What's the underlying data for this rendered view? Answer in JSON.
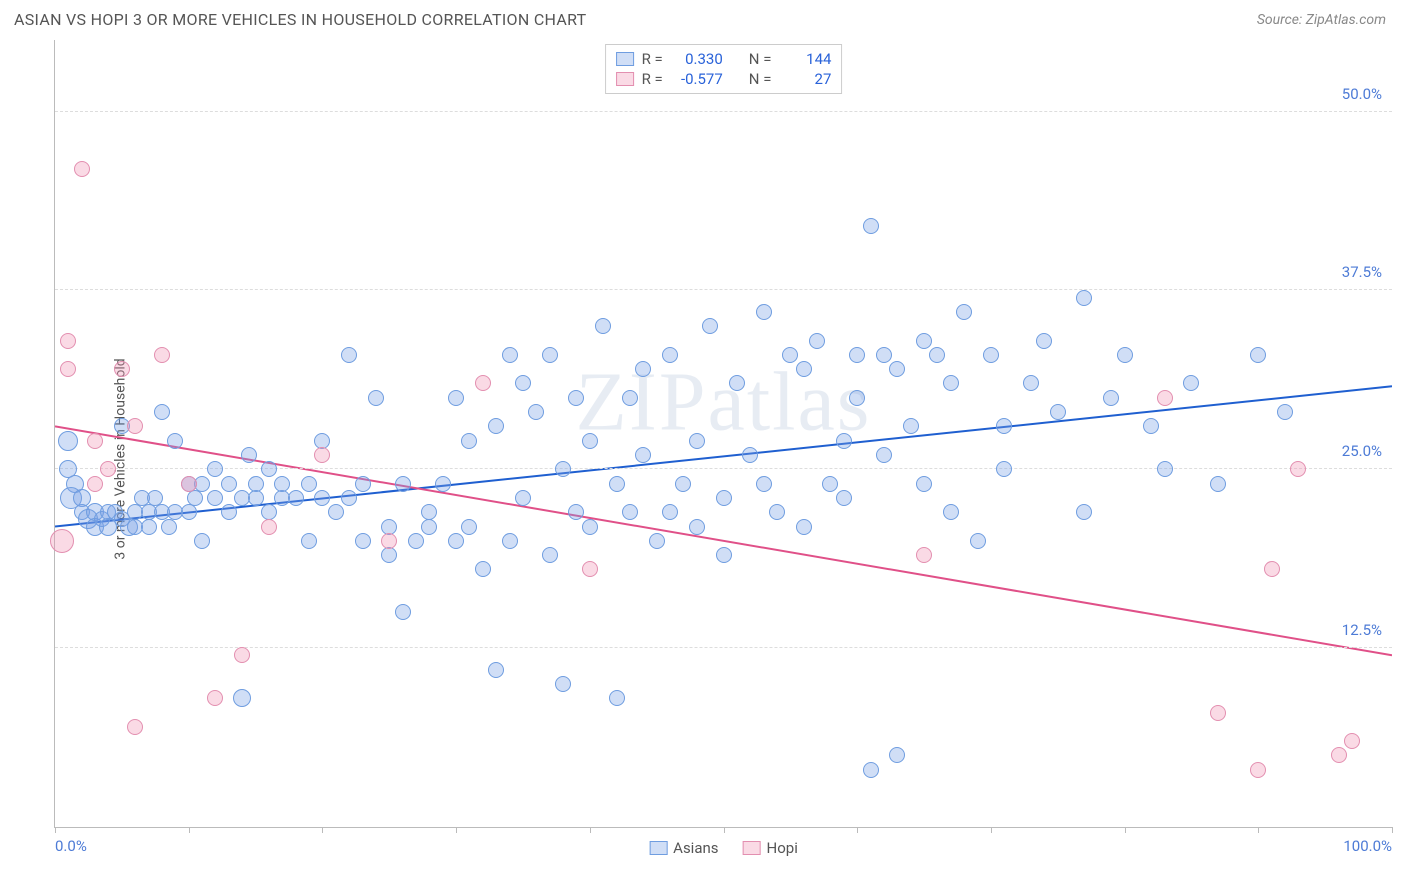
{
  "title": "ASIAN VS HOPI 3 OR MORE VEHICLES IN HOUSEHOLD CORRELATION CHART",
  "source_prefix": "Source: ",
  "source_name": "ZipAtlas.com",
  "y_axis_label": "3 or more Vehicles in Household",
  "watermark": "ZIPatlas",
  "chart": {
    "type": "scatter",
    "xlim": [
      0,
      100
    ],
    "ylim": [
      0,
      55
    ],
    "x_ticks": [
      0,
      10,
      20,
      30,
      40,
      50,
      60,
      70,
      80,
      90,
      100
    ],
    "x_tick_labels": {
      "0": "0.0%",
      "100": "100.0%"
    },
    "y_gridlines": [
      12.5,
      25.0,
      37.5,
      50.0
    ],
    "y_tick_labels": [
      "12.5%",
      "25.0%",
      "37.5%",
      "50.0%"
    ],
    "background_color": "#ffffff",
    "grid_color": "#dddddd",
    "axis_color": "#bbbbbb",
    "tick_label_color": "#4d7bd6",
    "series": [
      {
        "name": "Asians",
        "fill": "rgba(120,160,230,0.35)",
        "stroke": "#6f9de0",
        "trend_color": "#1f5fd0",
        "trend": {
          "x1": 0,
          "y1": 21.0,
          "x2": 100,
          "y2": 30.8
        },
        "R": "0.330",
        "N": "144",
        "points": [
          {
            "x": 1,
            "y": 27,
            "r": 10
          },
          {
            "x": 1,
            "y": 25,
            "r": 9
          },
          {
            "x": 1.5,
            "y": 24,
            "r": 9
          },
          {
            "x": 1.2,
            "y": 23,
            "r": 11
          },
          {
            "x": 2,
            "y": 23,
            "r": 9
          },
          {
            "x": 2,
            "y": 22,
            "r": 8
          },
          {
            "x": 2.5,
            "y": 21.5,
            "r": 10
          },
          {
            "x": 3,
            "y": 22,
            "r": 9
          },
          {
            "x": 3,
            "y": 21,
            "r": 9
          },
          {
            "x": 3.5,
            "y": 21.5,
            "r": 8
          },
          {
            "x": 4,
            "y": 21,
            "r": 9
          },
          {
            "x": 4,
            "y": 22,
            "r": 8
          },
          {
            "x": 4.5,
            "y": 22,
            "r": 8
          },
          {
            "x": 5,
            "y": 21.5,
            "r": 8
          },
          {
            "x": 5,
            "y": 28,
            "r": 8
          },
          {
            "x": 5.5,
            "y": 21,
            "r": 9
          },
          {
            "x": 6,
            "y": 22,
            "r": 8
          },
          {
            "x": 6,
            "y": 21,
            "r": 8
          },
          {
            "x": 6.5,
            "y": 23,
            "r": 8
          },
          {
            "x": 7,
            "y": 22,
            "r": 8
          },
          {
            "x": 7,
            "y": 21,
            "r": 8
          },
          {
            "x": 7.5,
            "y": 23,
            "r": 8
          },
          {
            "x": 8,
            "y": 22,
            "r": 8
          },
          {
            "x": 8,
            "y": 29,
            "r": 8
          },
          {
            "x": 8.5,
            "y": 21,
            "r": 8
          },
          {
            "x": 9,
            "y": 22,
            "r": 8
          },
          {
            "x": 9,
            "y": 27,
            "r": 8
          },
          {
            "x": 10,
            "y": 22,
            "r": 8
          },
          {
            "x": 10,
            "y": 24,
            "r": 8
          },
          {
            "x": 10.5,
            "y": 23,
            "r": 8
          },
          {
            "x": 11,
            "y": 20,
            "r": 8
          },
          {
            "x": 11,
            "y": 24,
            "r": 8
          },
          {
            "x": 12,
            "y": 23,
            "r": 8
          },
          {
            "x": 12,
            "y": 25,
            "r": 8
          },
          {
            "x": 13,
            "y": 24,
            "r": 8
          },
          {
            "x": 13,
            "y": 22,
            "r": 8
          },
          {
            "x": 14,
            "y": 9,
            "r": 9
          },
          {
            "x": 14,
            "y": 23,
            "r": 8
          },
          {
            "x": 14.5,
            "y": 26,
            "r": 8
          },
          {
            "x": 15,
            "y": 24,
            "r": 8
          },
          {
            "x": 15,
            "y": 23,
            "r": 8
          },
          {
            "x": 16,
            "y": 22,
            "r": 8
          },
          {
            "x": 16,
            "y": 25,
            "r": 8
          },
          {
            "x": 17,
            "y": 23,
            "r": 8
          },
          {
            "x": 17,
            "y": 24,
            "r": 8
          },
          {
            "x": 18,
            "y": 23,
            "r": 8
          },
          {
            "x": 19,
            "y": 20,
            "r": 8
          },
          {
            "x": 19,
            "y": 24,
            "r": 8
          },
          {
            "x": 20,
            "y": 23,
            "r": 8
          },
          {
            "x": 20,
            "y": 27,
            "r": 8
          },
          {
            "x": 21,
            "y": 22,
            "r": 8
          },
          {
            "x": 22,
            "y": 33,
            "r": 8
          },
          {
            "x": 22,
            "y": 23,
            "r": 8
          },
          {
            "x": 23,
            "y": 20,
            "r": 8
          },
          {
            "x": 23,
            "y": 24,
            "r": 8
          },
          {
            "x": 24,
            "y": 30,
            "r": 8
          },
          {
            "x": 25,
            "y": 21,
            "r": 8
          },
          {
            "x": 25,
            "y": 19,
            "r": 8
          },
          {
            "x": 26,
            "y": 15,
            "r": 8
          },
          {
            "x": 26,
            "y": 24,
            "r": 8
          },
          {
            "x": 27,
            "y": 20,
            "r": 8
          },
          {
            "x": 28,
            "y": 22,
            "r": 8
          },
          {
            "x": 28,
            "y": 21,
            "r": 8
          },
          {
            "x": 29,
            "y": 24,
            "r": 8
          },
          {
            "x": 30,
            "y": 30,
            "r": 8
          },
          {
            "x": 30,
            "y": 20,
            "r": 8
          },
          {
            "x": 31,
            "y": 27,
            "r": 8
          },
          {
            "x": 31,
            "y": 21,
            "r": 8
          },
          {
            "x": 32,
            "y": 18,
            "r": 8
          },
          {
            "x": 33,
            "y": 28,
            "r": 8
          },
          {
            "x": 33,
            "y": 11,
            "r": 8
          },
          {
            "x": 34,
            "y": 33,
            "r": 8
          },
          {
            "x": 34,
            "y": 20,
            "r": 8
          },
          {
            "x": 35,
            "y": 23,
            "r": 8
          },
          {
            "x": 35,
            "y": 31,
            "r": 8
          },
          {
            "x": 36,
            "y": 29,
            "r": 8
          },
          {
            "x": 37,
            "y": 19,
            "r": 8
          },
          {
            "x": 37,
            "y": 33,
            "r": 8
          },
          {
            "x": 38,
            "y": 25,
            "r": 8
          },
          {
            "x": 38,
            "y": 10,
            "r": 8
          },
          {
            "x": 39,
            "y": 30,
            "r": 8
          },
          {
            "x": 39,
            "y": 22,
            "r": 8
          },
          {
            "x": 40,
            "y": 27,
            "r": 8
          },
          {
            "x": 40,
            "y": 21,
            "r": 8
          },
          {
            "x": 41,
            "y": 35,
            "r": 8
          },
          {
            "x": 42,
            "y": 24,
            "r": 8
          },
          {
            "x": 42,
            "y": 9,
            "r": 8
          },
          {
            "x": 43,
            "y": 22,
            "r": 8
          },
          {
            "x": 43,
            "y": 30,
            "r": 8
          },
          {
            "x": 44,
            "y": 26,
            "r": 8
          },
          {
            "x": 44,
            "y": 32,
            "r": 8
          },
          {
            "x": 45,
            "y": 20,
            "r": 8
          },
          {
            "x": 46,
            "y": 33,
            "r": 8
          },
          {
            "x": 46,
            "y": 22,
            "r": 8
          },
          {
            "x": 47,
            "y": 24,
            "r": 8
          },
          {
            "x": 48,
            "y": 27,
            "r": 8
          },
          {
            "x": 48,
            "y": 21,
            "r": 8
          },
          {
            "x": 49,
            "y": 35,
            "r": 8
          },
          {
            "x": 50,
            "y": 23,
            "r": 8
          },
          {
            "x": 50,
            "y": 19,
            "r": 8
          },
          {
            "x": 51,
            "y": 31,
            "r": 8
          },
          {
            "x": 52,
            "y": 26,
            "r": 8
          },
          {
            "x": 53,
            "y": 24,
            "r": 8
          },
          {
            "x": 53,
            "y": 36,
            "r": 8
          },
          {
            "x": 54,
            "y": 22,
            "r": 8
          },
          {
            "x": 55,
            "y": 33,
            "r": 8
          },
          {
            "x": 56,
            "y": 32,
            "r": 8
          },
          {
            "x": 56,
            "y": 21,
            "r": 8
          },
          {
            "x": 57,
            "y": 34,
            "r": 8
          },
          {
            "x": 58,
            "y": 24,
            "r": 8
          },
          {
            "x": 59,
            "y": 27,
            "r": 8
          },
          {
            "x": 59,
            "y": 23,
            "r": 8
          },
          {
            "x": 60,
            "y": 33,
            "r": 8
          },
          {
            "x": 60,
            "y": 30,
            "r": 8
          },
          {
            "x": 61,
            "y": 42,
            "r": 8
          },
          {
            "x": 61,
            "y": 4,
            "r": 8
          },
          {
            "x": 62,
            "y": 33,
            "r": 8
          },
          {
            "x": 62,
            "y": 26,
            "r": 8
          },
          {
            "x": 63,
            "y": 5,
            "r": 8
          },
          {
            "x": 63,
            "y": 32,
            "r": 8
          },
          {
            "x": 64,
            "y": 28,
            "r": 8
          },
          {
            "x": 65,
            "y": 34,
            "r": 8
          },
          {
            "x": 65,
            "y": 24,
            "r": 8
          },
          {
            "x": 66,
            "y": 33,
            "r": 8
          },
          {
            "x": 67,
            "y": 22,
            "r": 8
          },
          {
            "x": 67,
            "y": 31,
            "r": 8
          },
          {
            "x": 68,
            "y": 36,
            "r": 8
          },
          {
            "x": 69,
            "y": 20,
            "r": 8
          },
          {
            "x": 70,
            "y": 33,
            "r": 8
          },
          {
            "x": 71,
            "y": 28,
            "r": 8
          },
          {
            "x": 71,
            "y": 25,
            "r": 8
          },
          {
            "x": 73,
            "y": 31,
            "r": 8
          },
          {
            "x": 74,
            "y": 34,
            "r": 8
          },
          {
            "x": 75,
            "y": 29,
            "r": 8
          },
          {
            "x": 77,
            "y": 22,
            "r": 8
          },
          {
            "x": 77,
            "y": 37,
            "r": 8
          },
          {
            "x": 79,
            "y": 30,
            "r": 8
          },
          {
            "x": 80,
            "y": 33,
            "r": 8
          },
          {
            "x": 82,
            "y": 28,
            "r": 8
          },
          {
            "x": 83,
            "y": 25,
            "r": 8
          },
          {
            "x": 85,
            "y": 31,
            "r": 8
          },
          {
            "x": 87,
            "y": 24,
            "r": 8
          },
          {
            "x": 90,
            "y": 33,
            "r": 8
          },
          {
            "x": 92,
            "y": 29,
            "r": 8
          }
        ]
      },
      {
        "name": "Hopi",
        "fill": "rgba(240,150,180,0.35)",
        "stroke": "#e38fb0",
        "trend_color": "#e05088",
        "trend": {
          "x1": 0,
          "y1": 28.0,
          "x2": 100,
          "y2": 12.0
        },
        "R": "-0.577",
        "N": "27",
        "points": [
          {
            "x": 0.5,
            "y": 20,
            "r": 12
          },
          {
            "x": 1,
            "y": 34,
            "r": 8
          },
          {
            "x": 1,
            "y": 32,
            "r": 8
          },
          {
            "x": 2,
            "y": 46,
            "r": 8
          },
          {
            "x": 3,
            "y": 24,
            "r": 8
          },
          {
            "x": 3,
            "y": 27,
            "r": 8
          },
          {
            "x": 4,
            "y": 25,
            "r": 8
          },
          {
            "x": 5,
            "y": 32,
            "r": 8
          },
          {
            "x": 6,
            "y": 28,
            "r": 8
          },
          {
            "x": 6,
            "y": 7,
            "r": 8
          },
          {
            "x": 8,
            "y": 33,
            "r": 8
          },
          {
            "x": 10,
            "y": 24,
            "r": 8
          },
          {
            "x": 12,
            "y": 9,
            "r": 8
          },
          {
            "x": 14,
            "y": 12,
            "r": 8
          },
          {
            "x": 16,
            "y": 21,
            "r": 8
          },
          {
            "x": 20,
            "y": 26,
            "r": 8
          },
          {
            "x": 25,
            "y": 20,
            "r": 8
          },
          {
            "x": 32,
            "y": 31,
            "r": 8
          },
          {
            "x": 40,
            "y": 18,
            "r": 8
          },
          {
            "x": 65,
            "y": 19,
            "r": 8
          },
          {
            "x": 83,
            "y": 30,
            "r": 8
          },
          {
            "x": 87,
            "y": 8,
            "r": 8
          },
          {
            "x": 90,
            "y": 4,
            "r": 8
          },
          {
            "x": 91,
            "y": 18,
            "r": 8
          },
          {
            "x": 93,
            "y": 25,
            "r": 8
          },
          {
            "x": 96,
            "y": 5,
            "r": 8
          },
          {
            "x": 97,
            "y": 6,
            "r": 8
          }
        ]
      }
    ]
  },
  "legend_labels": {
    "asians": "Asians",
    "hopi": "Hopi"
  },
  "stat_labels": {
    "R": "R =",
    "N": "N ="
  }
}
